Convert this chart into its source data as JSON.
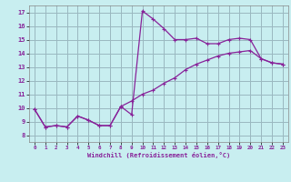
{
  "xlabel": "Windchill (Refroidissement éolien,°C)",
  "background_color": "#c8eef0",
  "grid_color": "#9ab8c0",
  "line_color": "#882299",
  "xlim": [
    -0.5,
    23.5
  ],
  "ylim": [
    7.5,
    17.5
  ],
  "xticks": [
    0,
    1,
    2,
    3,
    4,
    5,
    6,
    7,
    8,
    9,
    10,
    11,
    12,
    13,
    14,
    15,
    16,
    17,
    18,
    19,
    20,
    21,
    22,
    23
  ],
  "yticks": [
    8,
    9,
    10,
    11,
    12,
    13,
    14,
    15,
    16,
    17
  ],
  "line1_x": [
    0,
    1,
    2,
    3,
    4,
    5,
    6,
    7,
    8,
    9,
    10,
    11,
    12,
    13,
    14,
    15,
    16,
    17,
    18,
    19,
    20,
    21,
    22,
    23
  ],
  "line1_y": [
    9.9,
    8.6,
    8.7,
    8.6,
    9.4,
    9.1,
    8.7,
    8.7,
    10.1,
    9.5,
    17.1,
    16.5,
    15.8,
    15.0,
    15.0,
    15.1,
    14.7,
    14.7,
    15.0,
    15.1,
    15.0,
    13.6,
    13.3,
    13.2
  ],
  "line2_x": [
    0,
    1,
    2,
    3,
    4,
    5,
    6,
    7,
    8,
    9,
    10,
    11,
    12,
    13,
    14,
    15,
    16,
    17,
    18,
    19,
    20,
    21,
    22,
    23
  ],
  "line2_y": [
    9.9,
    8.6,
    8.7,
    8.6,
    9.4,
    9.1,
    8.7,
    8.7,
    10.1,
    10.5,
    11.0,
    11.3,
    11.8,
    12.2,
    12.8,
    13.2,
    13.5,
    13.8,
    14.0,
    14.1,
    14.2,
    13.6,
    13.3,
    13.2
  ]
}
